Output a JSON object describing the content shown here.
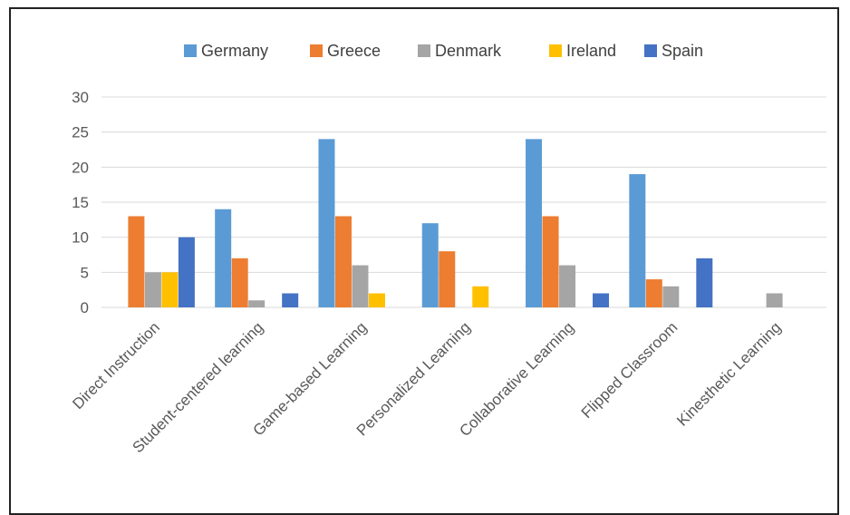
{
  "chart_data": {
    "type": "bar",
    "title": "",
    "xlabel": "",
    "ylabel": "",
    "ylim": [
      0,
      30
    ],
    "yticks": [
      0,
      5,
      10,
      15,
      20,
      25,
      30
    ],
    "grid": true,
    "legend_position": "top",
    "categories": [
      "Direct Instruction",
      "Student-centered learning",
      "Game-based Learning",
      "Personalized Learning",
      "Collaborative Learning",
      "Flipped Classroom",
      "Kinesthetic Learning"
    ],
    "series": [
      {
        "name": "Germany",
        "color": "#5b9bd5",
        "values": [
          0,
          14,
          24,
          12,
          24,
          19,
          0
        ]
      },
      {
        "name": "Greece",
        "color": "#ed7d31",
        "values": [
          13,
          7,
          13,
          8,
          13,
          4,
          0
        ]
      },
      {
        "name": "Denmark",
        "color": "#a5a5a5",
        "values": [
          5,
          1,
          6,
          0,
          6,
          3,
          2
        ]
      },
      {
        "name": "Ireland",
        "color": "#ffc000",
        "values": [
          5,
          0,
          2,
          3,
          0,
          0,
          0
        ]
      },
      {
        "name": "Spain",
        "color": "#4472c4",
        "values": [
          10,
          2,
          0,
          0,
          2,
          7,
          0
        ]
      }
    ]
  }
}
